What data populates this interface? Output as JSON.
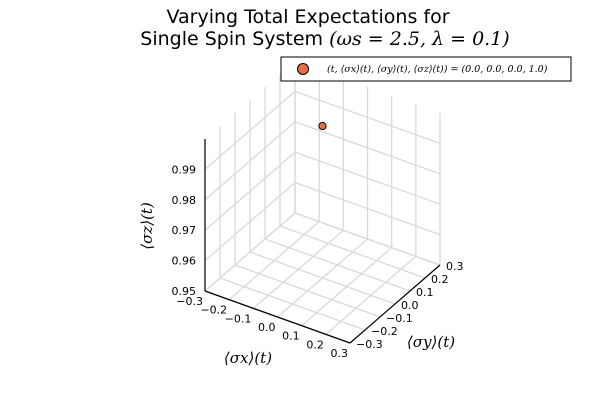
{
  "chart_data": {
    "type": "scatter",
    "dimensions": 3,
    "title_line1": "Varying Total Expectations for",
    "title_line2_prefix": "Single Spin System ",
    "title_line2_math": "(ωs = 2.5, λ = 0.1)",
    "xlabel": "⟨σx⟩(t)",
    "ylabel": "⟨σy⟩(t)",
    "zlabel": "⟨σz⟩(t)",
    "x_ticks": [
      "−0.3",
      "−0.2",
      "−0.1",
      "0.0",
      "0.1",
      "0.2",
      "0.3"
    ],
    "y_ticks": [
      "−0.3",
      "−0.2",
      "−0.1",
      "0.0",
      "0.1",
      "0.2",
      "0.3"
    ],
    "z_ticks": [
      "0.95",
      "0.96",
      "0.97",
      "0.98",
      "0.99"
    ],
    "xlim": [
      -0.3,
      0.3
    ],
    "ylim": [
      -0.3,
      0.3
    ],
    "zlim": [
      0.95,
      1.0
    ],
    "grid": true,
    "legend_position": "top-right",
    "series": [
      {
        "name": "(t, ⟨σx⟩(t), ⟨σy⟩(t), ⟨σz⟩(t))  = (0.0, 0.0, 0.0, 1.0)",
        "color": "#e26f46",
        "points": [
          {
            "x": 0.0,
            "y": 0.0,
            "z": 1.0
          }
        ]
      }
    ]
  }
}
